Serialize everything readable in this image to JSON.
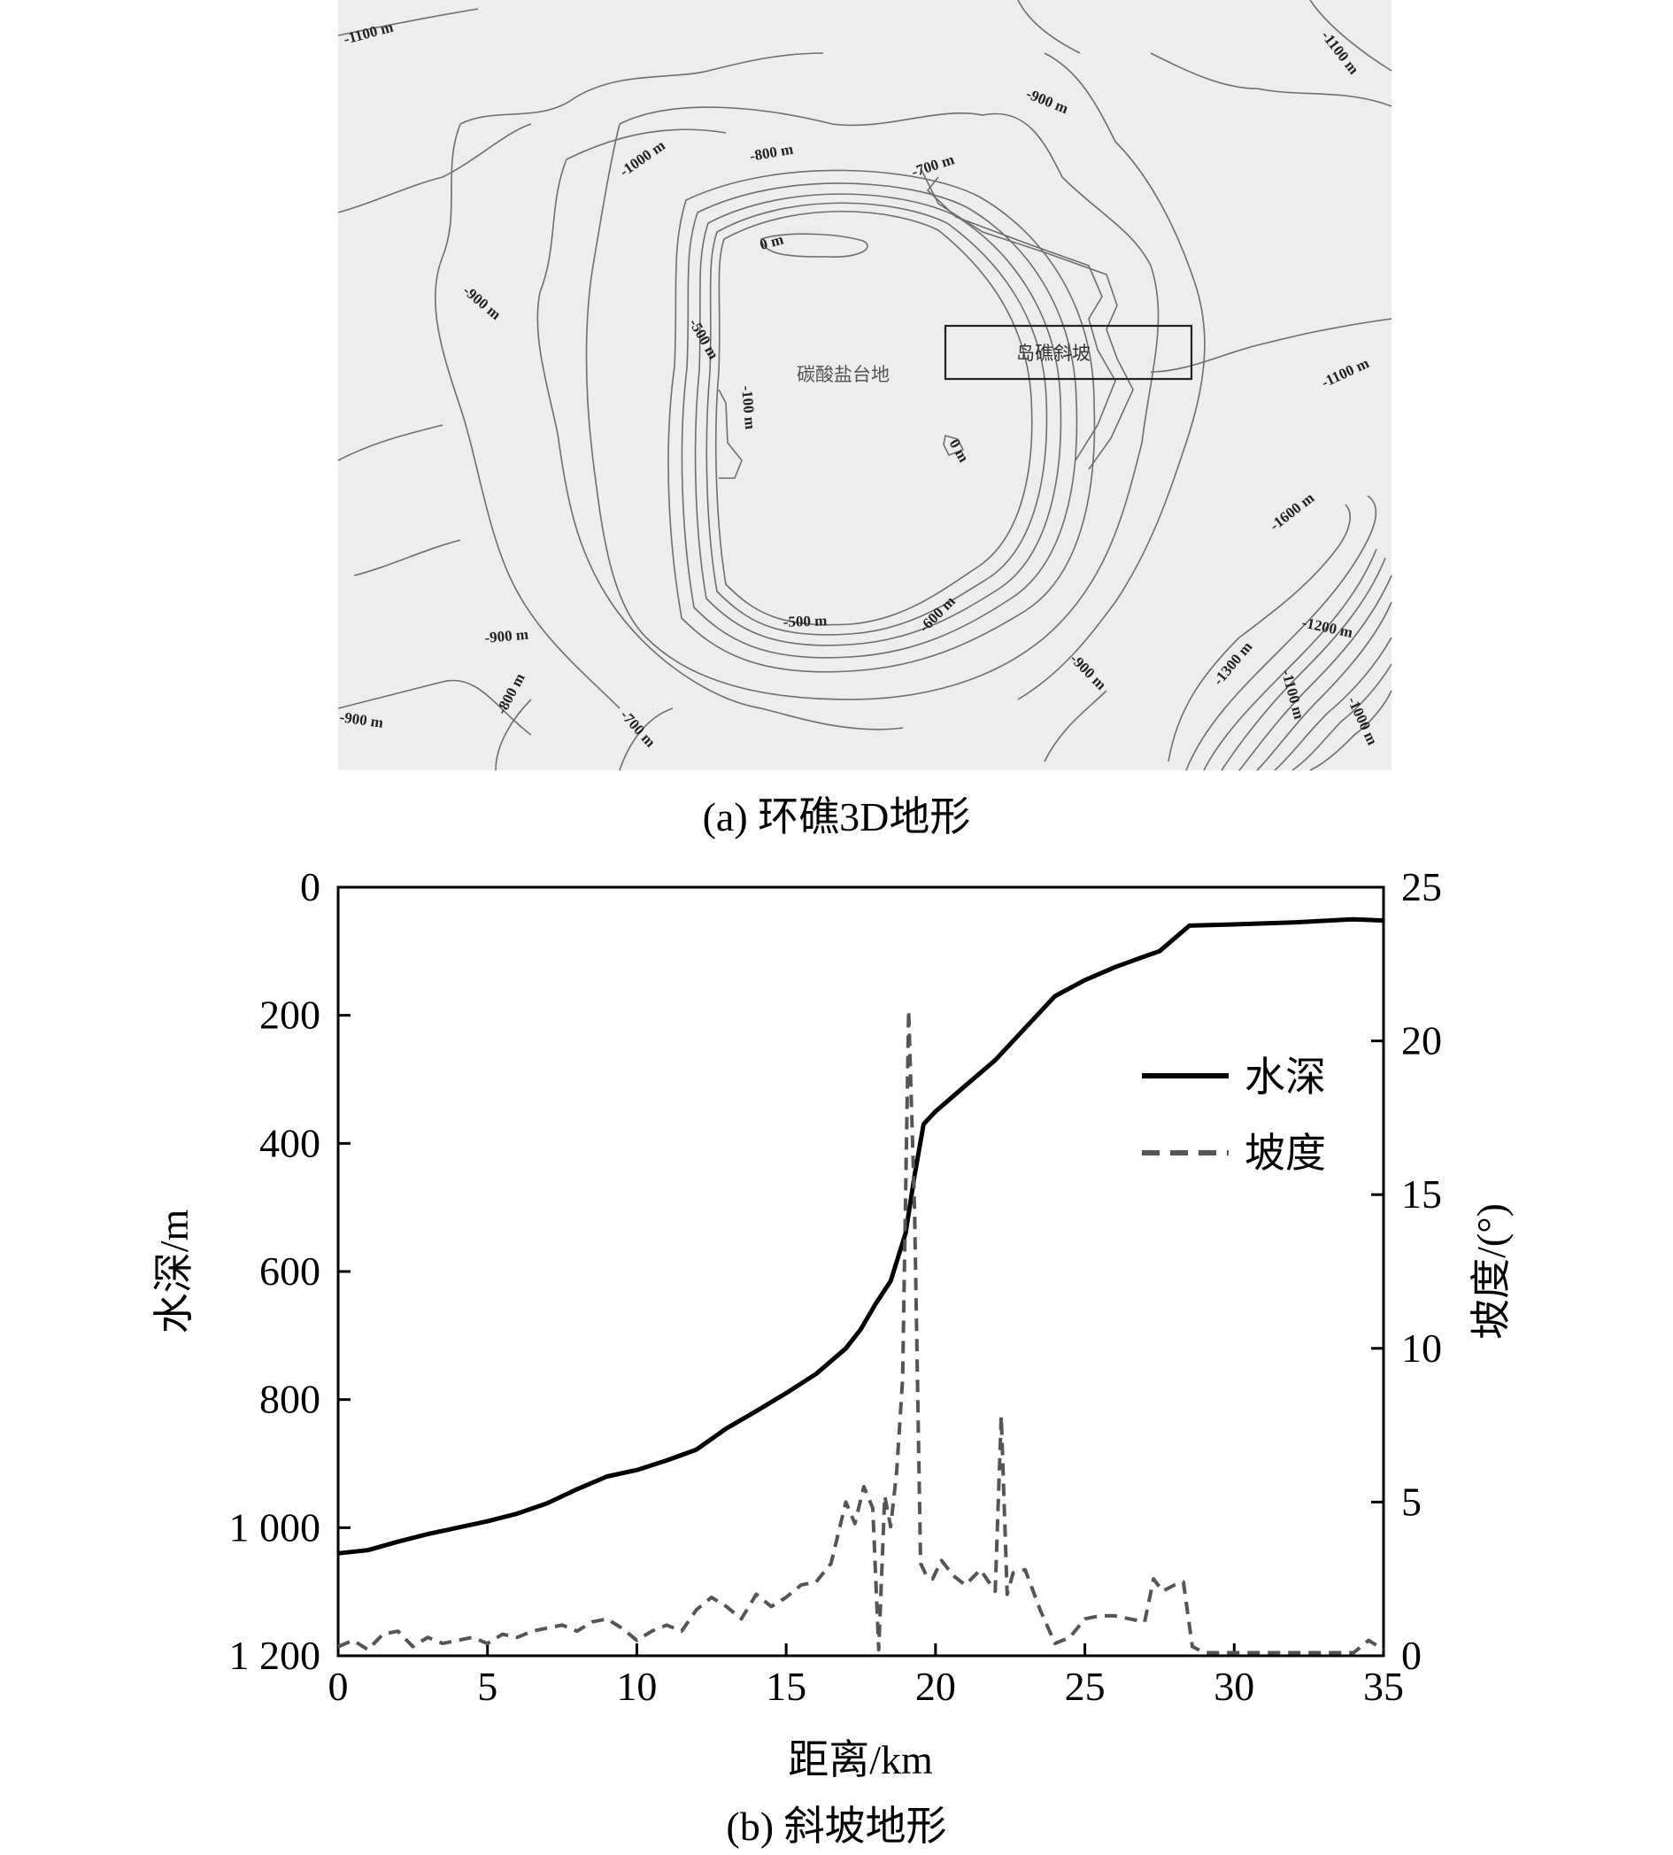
{
  "panel_a": {
    "caption": "(a) 环礁3D地形",
    "region_labels": {
      "platform": "碳酸盐台地",
      "slope_box": "岛礁斜坡"
    },
    "contour_labels": [
      "-1100 m",
      "-1100 m",
      "-900 m",
      "-1000 m",
      "-800 m",
      "-700 m",
      "0 m",
      "-900 m",
      "-500 m",
      "-100 m",
      "0 m",
      "-1100 m",
      "-1600 m",
      "-1200 m",
      "-1300 m",
      "-1100 m",
      "-1000 m",
      "-900 m",
      "-800 m",
      "-500 m",
      "-600 m",
      "-900 m",
      "-900 m",
      "-700 m"
    ]
  },
  "panel_b": {
    "caption": "(b) 斜坡地形"
  },
  "chart_data": {
    "type": "line",
    "title": "",
    "xlabel": "距离/km",
    "ylabel_left": "水深/m",
    "ylabel_right": "坡度/(°)",
    "xlim": [
      0,
      35
    ],
    "ylim_left": [
      0,
      1200
    ],
    "ylim_right": [
      0,
      25
    ],
    "left_axis_inverted": true,
    "grid": false,
    "legend": "top-right",
    "x_ticks": [
      "0",
      "5",
      "10",
      "15",
      "20",
      "25",
      "30",
      "35"
    ],
    "y_left_ticks": [
      "0",
      "200",
      "400",
      "600",
      "800",
      "1 000",
      "1 200"
    ],
    "y_right_ticks": [
      "0",
      "5",
      "10",
      "15",
      "20",
      "25"
    ],
    "series": [
      {
        "name": "水深",
        "axis": "left",
        "style": "solid",
        "color": "#000000",
        "x": [
          0,
          1,
          2,
          3,
          4,
          5,
          6,
          7,
          8,
          9,
          10,
          11,
          12,
          13,
          14,
          15,
          16,
          17,
          17.5,
          18,
          18.5,
          19,
          19.3,
          19.6,
          20,
          21,
          22,
          23,
          24,
          25,
          26,
          27,
          27.5,
          28,
          28.5,
          30,
          32,
          34,
          35
        ],
        "values": [
          1040,
          1035,
          1022,
          1010,
          1000,
          990,
          978,
          962,
          940,
          920,
          910,
          895,
          878,
          845,
          818,
          790,
          760,
          720,
          690,
          650,
          615,
          540,
          450,
          370,
          350,
          310,
          270,
          220,
          170,
          145,
          125,
          108,
          100,
          80,
          60,
          58,
          55,
          50,
          52
        ]
      },
      {
        "name": "坡度",
        "axis": "right",
        "style": "dashed",
        "color": "#555555",
        "x": [
          0,
          0.5,
          1,
          1.5,
          2,
          2.5,
          3,
          3.5,
          4,
          4.5,
          5,
          5.5,
          6,
          6.5,
          7,
          7.5,
          8,
          8.5,
          9,
          9.5,
          10,
          10.5,
          11,
          11.5,
          12,
          12.5,
          13,
          13.5,
          14,
          14.5,
          15,
          15.5,
          16,
          16.5,
          17,
          17.3,
          17.6,
          17.9,
          18.1,
          18.3,
          18.5,
          18.7,
          18.9,
          19.1,
          19.3,
          19.5,
          19.7,
          19.9,
          20.2,
          20.6,
          21,
          21.5,
          22,
          22.2,
          22.4,
          22.6,
          23,
          23.5,
          24,
          24.5,
          25,
          25.5,
          26,
          26.5,
          27,
          27.3,
          27.6,
          28,
          28.3,
          28.6,
          29,
          30,
          31,
          32,
          33,
          34,
          34.5,
          35
        ],
        "values": [
          0.3,
          0.5,
          0.2,
          0.7,
          0.8,
          0.3,
          0.6,
          0.4,
          0.5,
          0.6,
          0.4,
          0.7,
          0.6,
          0.8,
          0.9,
          1.0,
          0.8,
          1.1,
          1.2,
          0.9,
          0.5,
          0.8,
          1.0,
          0.8,
          1.5,
          1.9,
          1.6,
          1.2,
          2.0,
          1.6,
          1.9,
          2.3,
          2.4,
          3.0,
          5.0,
          4.3,
          5.5,
          4.8,
          0.2,
          5.2,
          4.2,
          6.0,
          9.0,
          21.0,
          14.5,
          3.0,
          2.6,
          2.5,
          3.1,
          2.6,
          2.3,
          2.8,
          2.1,
          7.8,
          2.0,
          2.7,
          2.8,
          1.5,
          0.4,
          0.6,
          1.2,
          1.3,
          1.3,
          1.2,
          1.1,
          2.5,
          2.1,
          2.3,
          2.4,
          0.3,
          0.1,
          0.1,
          0.1,
          0.1,
          0.1,
          0.1,
          0.5,
          0.2
        ]
      }
    ]
  }
}
